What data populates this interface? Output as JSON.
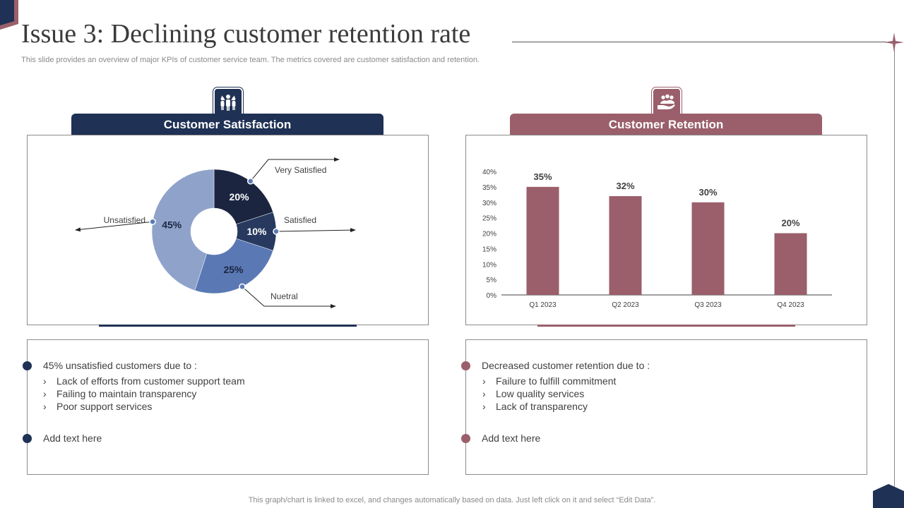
{
  "title": "Issue 3: Declining customer retention rate",
  "subtitle": "This slide provides an overview of major KPIs of customer service team. The metrics covered are customer satisfaction and retention.",
  "colors": {
    "navy": "#1f3154",
    "rose": "#9a5f6b"
  },
  "satisfaction": {
    "header": "Customer Satisfaction",
    "icon": "people-group-icon",
    "bullet_main": "45% unsatisfied customers due to :",
    "reasons": [
      "Lack of efforts from customer support team",
      "Failing to maintain transparency",
      "Poor support services"
    ],
    "bullet_extra": "Add text here"
  },
  "retention": {
    "header": "Customer Retention",
    "icon": "hand-people-icon",
    "bullet_main": "Decreased customer retention due to :",
    "reasons": [
      "Failure to fulfill commitment",
      "Low quality services",
      "Lack of transparency"
    ],
    "bullet_extra": "Add text here"
  },
  "chart_data": [
    {
      "type": "pie",
      "variant": "donut",
      "title": "Customer Satisfaction",
      "slices": [
        {
          "label": "Very Satisfied",
          "value": 20,
          "display": "20%",
          "color": "#1b2540"
        },
        {
          "label": "Satisfied",
          "value": 10,
          "display": "10%",
          "color": "#27395e"
        },
        {
          "label": "Nuetral",
          "value": 25,
          "display": "25%",
          "color": "#5a79b4"
        },
        {
          "label": "Unsatisfied",
          "value": 45,
          "display": "45%",
          "color": "#8fa3ca"
        }
      ]
    },
    {
      "type": "bar",
      "title": "Customer Retention",
      "categories": [
        "Q1 2023",
        "Q2 2023",
        "Q3 2023",
        "Q4 2023"
      ],
      "values": [
        35,
        32,
        30,
        20
      ],
      "data_labels": [
        "35%",
        "32%",
        "30%",
        "20%"
      ],
      "yticks": [
        "0%",
        "5%",
        "10%",
        "15%",
        "20%",
        "25%",
        "30%",
        "35%",
        "40%"
      ],
      "ylim": [
        0,
        40
      ],
      "color": "#9a5f6b"
    }
  ],
  "footer": "This graph/chart is linked to excel,  and changes automatically based on data. Just left click on it and select “Edit Data”."
}
